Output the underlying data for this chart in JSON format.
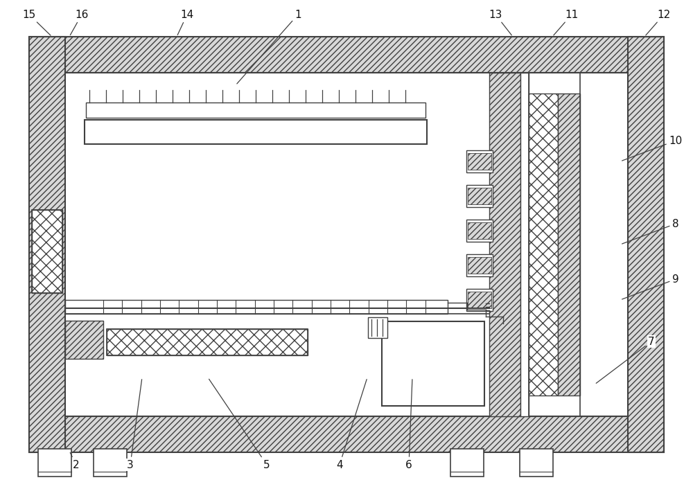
{
  "fig_width": 10.0,
  "fig_height": 6.93,
  "bg_color": "#ffffff",
  "lc": "#404040",
  "hatch_fc": "#d8d8d8"
}
